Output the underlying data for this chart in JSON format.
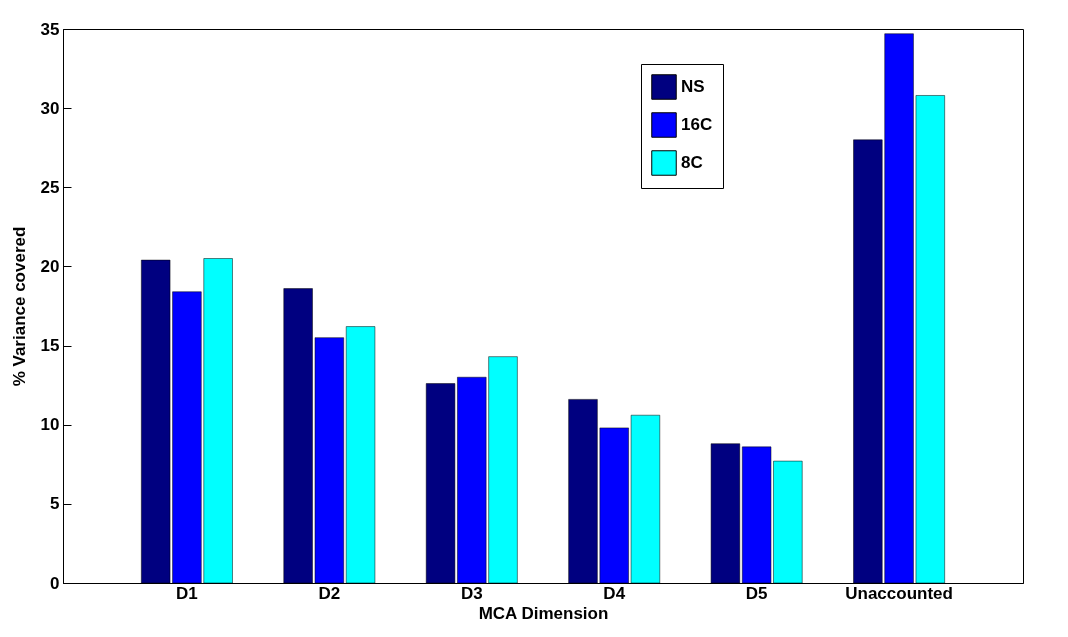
{
  "chart_data": {
    "type": "bar",
    "xlabel": "MCA Dimension",
    "ylabel": "% Variance covered",
    "categories": [
      "D1",
      "D2",
      "D3",
      "D4",
      "D5",
      "Unaccounted"
    ],
    "series": [
      {
        "name": "NS",
        "color": "#000080",
        "values": [
          20.4,
          18.6,
          12.6,
          11.6,
          8.8,
          28.0
        ]
      },
      {
        "name": "16C",
        "color": "#0000ff",
        "values": [
          18.4,
          15.5,
          13.0,
          9.8,
          8.6,
          34.7
        ]
      },
      {
        "name": "8C",
        "color": "#00ffff",
        "values": [
          20.5,
          16.2,
          14.3,
          10.6,
          7.7,
          30.8
        ]
      }
    ],
    "ylim": [
      0,
      35
    ],
    "yticks": [
      0,
      5,
      10,
      15,
      20,
      25,
      30,
      35
    ],
    "grid": false,
    "legend": "top right"
  }
}
